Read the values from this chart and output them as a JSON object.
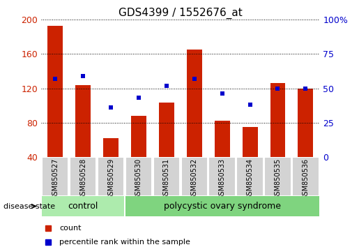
{
  "title": "GDS4399 / 1552676_at",
  "samples": [
    "GSM850527",
    "GSM850528",
    "GSM850529",
    "GSM850530",
    "GSM850531",
    "GSM850532",
    "GSM850533",
    "GSM850534",
    "GSM850535",
    "GSM850536"
  ],
  "counts": [
    193,
    124,
    62,
    88,
    103,
    165,
    82,
    75,
    126,
    120
  ],
  "percentiles": [
    57,
    59,
    36,
    43,
    52,
    57,
    46,
    38,
    50,
    50
  ],
  "groups": [
    "control",
    "control",
    "control",
    "polycystic ovary syndrome",
    "polycystic ovary syndrome",
    "polycystic ovary syndrome",
    "polycystic ovary syndrome",
    "polycystic ovary syndrome",
    "polycystic ovary syndrome",
    "polycystic ovary syndrome"
  ],
  "bar_color": "#CC2200",
  "dot_color": "#0000CC",
  "ctrl_color": "#ADEBAD",
  "pcos_color": "#7FD47F",
  "ymin": 40,
  "ymax": 200,
  "yticks_left": [
    40,
    80,
    120,
    160,
    200
  ],
  "yticks_right": [
    0,
    25,
    50,
    75,
    100
  ],
  "ylabel_left_color": "#CC2200",
  "ylabel_right_color": "#0000CC",
  "background_color": "#ffffff",
  "legend_count_label": "count",
  "legend_pct_label": "percentile rank within the sample",
  "disease_state_label": "disease state",
  "figsize": [
    5.15,
    3.54
  ],
  "dpi": 100
}
